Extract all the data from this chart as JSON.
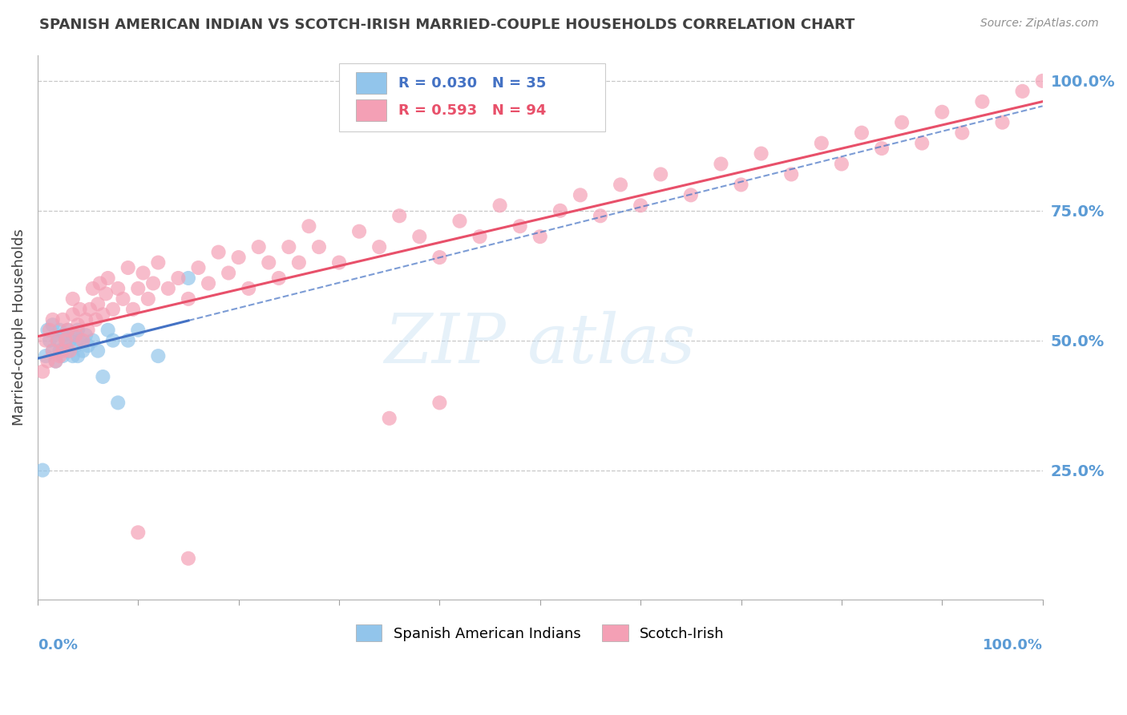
{
  "title": "SPANISH AMERICAN INDIAN VS SCOTCH-IRISH MARRIED-COUPLE HOUSEHOLDS CORRELATION CHART",
  "source": "Source: ZipAtlas.com",
  "ylabel": "Married-couple Households",
  "y_tick_labels": [
    "25.0%",
    "50.0%",
    "75.0%",
    "100.0%"
  ],
  "y_tick_values": [
    0.25,
    0.5,
    0.75,
    1.0
  ],
  "blue_R": 0.03,
  "blue_N": 35,
  "pink_R": 0.593,
  "pink_N": 94,
  "blue_scatter_color": "#92C5EB",
  "pink_scatter_color": "#F4A0B5",
  "blue_line_color": "#4472C4",
  "pink_line_color": "#E8506A",
  "legend_blue_label": "Spanish American Indians",
  "legend_pink_label": "Scotch-Irish",
  "background_color": "#FFFFFF",
  "grid_color": "#C8C8C8",
  "title_color": "#404040",
  "axis_label_color": "#5B9BD5",
  "blue_x": [
    0.005,
    0.008,
    0.01,
    0.012,
    0.015,
    0.015,
    0.018,
    0.02,
    0.022,
    0.022,
    0.025,
    0.025,
    0.028,
    0.03,
    0.03,
    0.032,
    0.035,
    0.035,
    0.038,
    0.04,
    0.04,
    0.042,
    0.045,
    0.048,
    0.05,
    0.055,
    0.06,
    0.065,
    0.07,
    0.075,
    0.08,
    0.09,
    0.1,
    0.12,
    0.15
  ],
  "blue_y": [
    0.25,
    0.47,
    0.52,
    0.5,
    0.48,
    0.53,
    0.46,
    0.5,
    0.48,
    0.52,
    0.47,
    0.51,
    0.49,
    0.48,
    0.52,
    0.5,
    0.47,
    0.51,
    0.49,
    0.47,
    0.52,
    0.5,
    0.48,
    0.51,
    0.49,
    0.5,
    0.48,
    0.43,
    0.52,
    0.5,
    0.38,
    0.5,
    0.52,
    0.47,
    0.62
  ],
  "pink_x": [
    0.005,
    0.008,
    0.01,
    0.012,
    0.015,
    0.015,
    0.018,
    0.02,
    0.022,
    0.025,
    0.025,
    0.028,
    0.03,
    0.032,
    0.035,
    0.035,
    0.038,
    0.04,
    0.042,
    0.045,
    0.048,
    0.05,
    0.052,
    0.055,
    0.058,
    0.06,
    0.062,
    0.065,
    0.068,
    0.07,
    0.075,
    0.08,
    0.085,
    0.09,
    0.095,
    0.1,
    0.105,
    0.11,
    0.115,
    0.12,
    0.13,
    0.14,
    0.15,
    0.16,
    0.17,
    0.18,
    0.19,
    0.2,
    0.21,
    0.22,
    0.23,
    0.24,
    0.25,
    0.26,
    0.27,
    0.28,
    0.3,
    0.32,
    0.34,
    0.36,
    0.38,
    0.4,
    0.42,
    0.44,
    0.46,
    0.48,
    0.5,
    0.52,
    0.54,
    0.56,
    0.58,
    0.6,
    0.62,
    0.65,
    0.68,
    0.7,
    0.72,
    0.75,
    0.78,
    0.8,
    0.82,
    0.84,
    0.86,
    0.88,
    0.9,
    0.92,
    0.94,
    0.96,
    0.98,
    1.0,
    0.1,
    0.15,
    0.35,
    0.4
  ],
  "pink_y": [
    0.44,
    0.5,
    0.46,
    0.52,
    0.48,
    0.54,
    0.46,
    0.5,
    0.47,
    0.48,
    0.54,
    0.5,
    0.52,
    0.48,
    0.55,
    0.58,
    0.51,
    0.53,
    0.56,
    0.5,
    0.54,
    0.52,
    0.56,
    0.6,
    0.54,
    0.57,
    0.61,
    0.55,
    0.59,
    0.62,
    0.56,
    0.6,
    0.58,
    0.64,
    0.56,
    0.6,
    0.63,
    0.58,
    0.61,
    0.65,
    0.6,
    0.62,
    0.58,
    0.64,
    0.61,
    0.67,
    0.63,
    0.66,
    0.6,
    0.68,
    0.65,
    0.62,
    0.68,
    0.65,
    0.72,
    0.68,
    0.65,
    0.71,
    0.68,
    0.74,
    0.7,
    0.66,
    0.73,
    0.7,
    0.76,
    0.72,
    0.7,
    0.75,
    0.78,
    0.74,
    0.8,
    0.76,
    0.82,
    0.78,
    0.84,
    0.8,
    0.86,
    0.82,
    0.88,
    0.84,
    0.9,
    0.87,
    0.92,
    0.88,
    0.94,
    0.9,
    0.96,
    0.92,
    0.98,
    1.0,
    0.13,
    0.08,
    0.35,
    0.38
  ]
}
